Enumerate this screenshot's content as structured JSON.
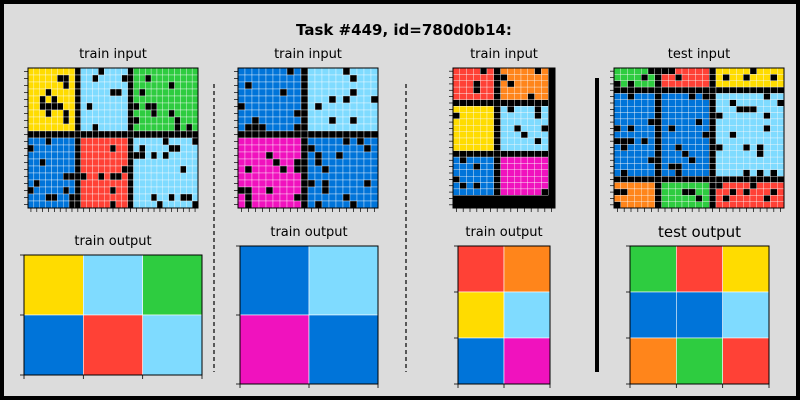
{
  "title": "Task #449, id=780d0b14:",
  "labels": {
    "train_input": "train input",
    "train_output": "train output",
    "test_input": "test input",
    "test_output": "test output"
  },
  "palette": {
    "0": "#000000",
    "1": "#0074D9",
    "2": "#FF4136",
    "3": "#2ECC40",
    "4": "#FFDC00",
    "5": "#AAAAAA",
    "6": "#F012BE",
    "7": "#FF851B",
    "8": "#7FDBFF",
    "9": "#870C25"
  },
  "pairs": [
    {
      "input_blocks": {
        "rows": [
          {
            "h": 10,
            "colors": [
              4,
              8,
              3
            ]
          },
          {
            "h": 10,
            "colors": [
              1,
              2,
              8
            ]
          }
        ],
        "cols": [
          9,
          9,
          11
        ],
        "gap_row": [
          {
            "after": 10
          }
        ],
        "rows_total": 20,
        "cols_total": 29
      },
      "output": [
        [
          4,
          8,
          3
        ],
        [
          1,
          2,
          8
        ]
      ]
    },
    {
      "input_blocks": {
        "rows": [
          {
            "h": 10,
            "colors": [
              1,
              8
            ]
          },
          {
            "h": 10,
            "colors": [
              6,
              1
            ]
          }
        ],
        "cols": [
          10,
          10
        ],
        "rows_total": 20,
        "cols_total": 20
      },
      "output": [
        [
          1,
          8
        ],
        [
          6,
          1
        ]
      ]
    },
    {
      "input_blocks": {
        "rows": [
          {
            "h": 6,
            "colors": [
              2,
              7
            ]
          },
          {
            "h": 8,
            "colors": [
              4,
              8
            ]
          },
          {
            "h": 6,
            "colors": [
              1,
              6
            ]
          }
        ],
        "cols": [
          7,
          7
        ],
        "rows_total": 22,
        "cols_total": 15
      },
      "output": [
        [
          2,
          7
        ],
        [
          4,
          8
        ],
        [
          1,
          6
        ]
      ]
    }
  ],
  "test": {
    "input_blocks": {
      "rows": [
        {
          "h": 4,
          "colors": [
            3,
            2,
            4
          ]
        },
        {
          "h": 14,
          "colors": [
            1,
            1,
            8
          ]
        },
        {
          "h": 4,
          "colors": [
            7,
            3,
            2
          ]
        }
      ],
      "cols": [
        7,
        8,
        10
      ],
      "rows_total": 22,
      "cols_total": 25
    },
    "output": [
      [
        3,
        2,
        4
      ],
      [
        1,
        1,
        8
      ],
      [
        7,
        3,
        2
      ]
    ]
  }
}
